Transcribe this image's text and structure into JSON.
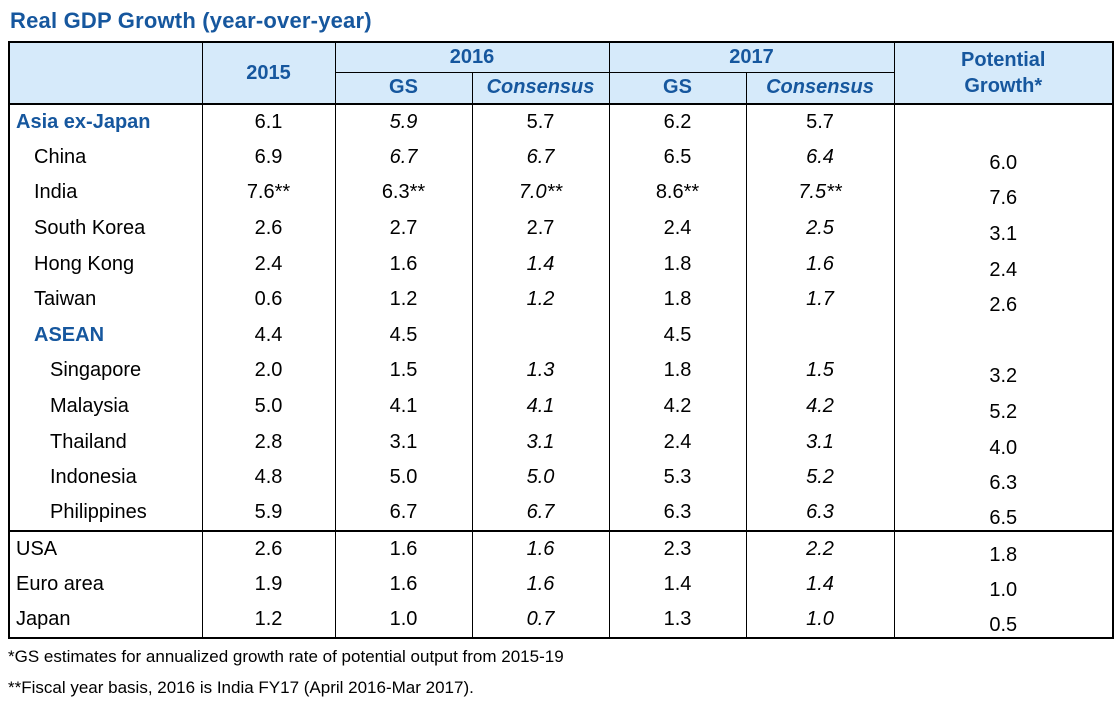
{
  "title": "Real GDP Growth (year-over-year)",
  "colors": {
    "accent": "#16579e",
    "header_bg": "#d6eafa",
    "border": "#000000"
  },
  "table": {
    "header": {
      "y2015": "2015",
      "y2016": "2016",
      "y2017": "2017",
      "gs": "GS",
      "consensus": "Consensus",
      "potential_l1": "Potential",
      "potential_l2": "Growth*"
    }
  },
  "chart_data": {
    "type": "table",
    "title": "Real GDP Growth (year-over-year)",
    "column_groups": [
      {
        "label": "2015",
        "span": 1
      },
      {
        "label": "2016",
        "span": 2,
        "sub": [
          "GS",
          "Consensus"
        ]
      },
      {
        "label": "2017",
        "span": 2,
        "sub": [
          "GS",
          "Consensus"
        ]
      },
      {
        "label": "Potential Growth*",
        "span": 1
      }
    ],
    "columns": [
      "",
      "2015",
      "2016 GS",
      "2016 Consensus",
      "2017 GS",
      "2017 Consensus",
      "Potential Growth*"
    ],
    "rows": [
      {
        "label": "Asia ex-Japan",
        "emphasis": "group",
        "indent": 0,
        "section_start": false,
        "cells": [
          {
            "text": "6.1",
            "italic": false
          },
          {
            "text": "5.9",
            "italic": true
          },
          {
            "text": "5.7",
            "italic": false
          },
          {
            "text": "6.2",
            "italic": false
          },
          {
            "text": "5.7",
            "italic": false
          },
          {
            "text": "",
            "italic": false
          }
        ]
      },
      {
        "label": "China",
        "emphasis": "normal",
        "indent": 1,
        "section_start": false,
        "cells": [
          {
            "text": "6.9",
            "italic": false
          },
          {
            "text": "6.7",
            "italic": true
          },
          {
            "text": "6.7",
            "italic": true
          },
          {
            "text": "6.5",
            "italic": false
          },
          {
            "text": "6.4",
            "italic": true
          },
          {
            "text": "6.0",
            "italic": false
          }
        ]
      },
      {
        "label": "India",
        "emphasis": "normal",
        "indent": 1,
        "section_start": false,
        "cells": [
          {
            "text": "7.6**",
            "italic": false
          },
          {
            "text": "6.3**",
            "italic": false
          },
          {
            "text": "7.0**",
            "italic": true
          },
          {
            "text": "8.6**",
            "italic": false
          },
          {
            "text": "7.5**",
            "italic": true
          },
          {
            "text": "7.6",
            "italic": false
          }
        ]
      },
      {
        "label": "South Korea",
        "emphasis": "normal",
        "indent": 1,
        "section_start": false,
        "cells": [
          {
            "text": "2.6",
            "italic": false
          },
          {
            "text": "2.7",
            "italic": false
          },
          {
            "text": "2.7",
            "italic": false
          },
          {
            "text": "2.4",
            "italic": false
          },
          {
            "text": "2.5",
            "italic": true
          },
          {
            "text": "3.1",
            "italic": false
          }
        ]
      },
      {
        "label": "Hong Kong",
        "emphasis": "normal",
        "indent": 1,
        "section_start": false,
        "cells": [
          {
            "text": "2.4",
            "italic": false
          },
          {
            "text": "1.6",
            "italic": false
          },
          {
            "text": "1.4",
            "italic": true
          },
          {
            "text": "1.8",
            "italic": false
          },
          {
            "text": "1.6",
            "italic": true
          },
          {
            "text": "2.4",
            "italic": false
          }
        ]
      },
      {
        "label": "Taiwan",
        "emphasis": "normal",
        "indent": 1,
        "section_start": false,
        "cells": [
          {
            "text": "0.6",
            "italic": false
          },
          {
            "text": "1.2",
            "italic": false
          },
          {
            "text": "1.2",
            "italic": true
          },
          {
            "text": "1.8",
            "italic": false
          },
          {
            "text": "1.7",
            "italic": true
          },
          {
            "text": "2.6",
            "italic": false
          }
        ]
      },
      {
        "label": "ASEAN",
        "emphasis": "group",
        "indent": 1,
        "section_start": false,
        "cells": [
          {
            "text": "4.4",
            "italic": false
          },
          {
            "text": "4.5",
            "italic": false
          },
          {
            "text": "",
            "italic": false
          },
          {
            "text": "4.5",
            "italic": false
          },
          {
            "text": "",
            "italic": false
          },
          {
            "text": "",
            "italic": false
          }
        ]
      },
      {
        "label": "Singapore",
        "emphasis": "normal",
        "indent": 2,
        "section_start": false,
        "cells": [
          {
            "text": "2.0",
            "italic": false
          },
          {
            "text": "1.5",
            "italic": false
          },
          {
            "text": "1.3",
            "italic": true
          },
          {
            "text": "1.8",
            "italic": false
          },
          {
            "text": "1.5",
            "italic": true
          },
          {
            "text": "3.2",
            "italic": false
          }
        ]
      },
      {
        "label": "Malaysia",
        "emphasis": "normal",
        "indent": 2,
        "section_start": false,
        "cells": [
          {
            "text": "5.0",
            "italic": false
          },
          {
            "text": "4.1",
            "italic": false
          },
          {
            "text": "4.1",
            "italic": true
          },
          {
            "text": "4.2",
            "italic": false
          },
          {
            "text": "4.2",
            "italic": true
          },
          {
            "text": "5.2",
            "italic": false
          }
        ]
      },
      {
        "label": "Thailand",
        "emphasis": "normal",
        "indent": 2,
        "section_start": false,
        "cells": [
          {
            "text": "2.8",
            "italic": false
          },
          {
            "text": "3.1",
            "italic": false
          },
          {
            "text": "3.1",
            "italic": true
          },
          {
            "text": "2.4",
            "italic": false
          },
          {
            "text": "3.1",
            "italic": true
          },
          {
            "text": "4.0",
            "italic": false
          }
        ]
      },
      {
        "label": "Indonesia",
        "emphasis": "normal",
        "indent": 2,
        "section_start": false,
        "cells": [
          {
            "text": "4.8",
            "italic": false
          },
          {
            "text": "5.0",
            "italic": false
          },
          {
            "text": "5.0",
            "italic": true
          },
          {
            "text": "5.3",
            "italic": false
          },
          {
            "text": "5.2",
            "italic": true
          },
          {
            "text": "6.3",
            "italic": false
          }
        ]
      },
      {
        "label": "Philippines",
        "emphasis": "normal",
        "indent": 2,
        "section_start": false,
        "cells": [
          {
            "text": "5.9",
            "italic": false
          },
          {
            "text": "6.7",
            "italic": false
          },
          {
            "text": "6.7",
            "italic": true
          },
          {
            "text": "6.3",
            "italic": false
          },
          {
            "text": "6.3",
            "italic": true
          },
          {
            "text": "6.5",
            "italic": false
          }
        ]
      },
      {
        "label": "USA",
        "emphasis": "normal",
        "indent": 0,
        "section_start": true,
        "cells": [
          {
            "text": "2.6",
            "italic": false
          },
          {
            "text": "1.6",
            "italic": false
          },
          {
            "text": "1.6",
            "italic": true
          },
          {
            "text": "2.3",
            "italic": false
          },
          {
            "text": "2.2",
            "italic": true
          },
          {
            "text": "1.8",
            "italic": false
          }
        ]
      },
      {
        "label": "Euro area",
        "emphasis": "normal",
        "indent": 0,
        "section_start": false,
        "cells": [
          {
            "text": "1.9",
            "italic": false
          },
          {
            "text": "1.6",
            "italic": false
          },
          {
            "text": "1.6",
            "italic": true
          },
          {
            "text": "1.4",
            "italic": false
          },
          {
            "text": "1.4",
            "italic": true
          },
          {
            "text": "1.0",
            "italic": false
          }
        ]
      },
      {
        "label": "Japan",
        "emphasis": "normal",
        "indent": 0,
        "section_start": false,
        "cells": [
          {
            "text": "1.2",
            "italic": false
          },
          {
            "text": "1.0",
            "italic": false
          },
          {
            "text": "0.7",
            "italic": true
          },
          {
            "text": "1.3",
            "italic": false
          },
          {
            "text": "1.0",
            "italic": true
          },
          {
            "text": "0.5",
            "italic": false
          }
        ]
      }
    ]
  },
  "footnotes": [
    "*GS estimates for annualized growth rate of potential output from 2015-19",
    "**Fiscal year basis, 2016 is India FY17 (April 2016-Mar 2017)."
  ]
}
